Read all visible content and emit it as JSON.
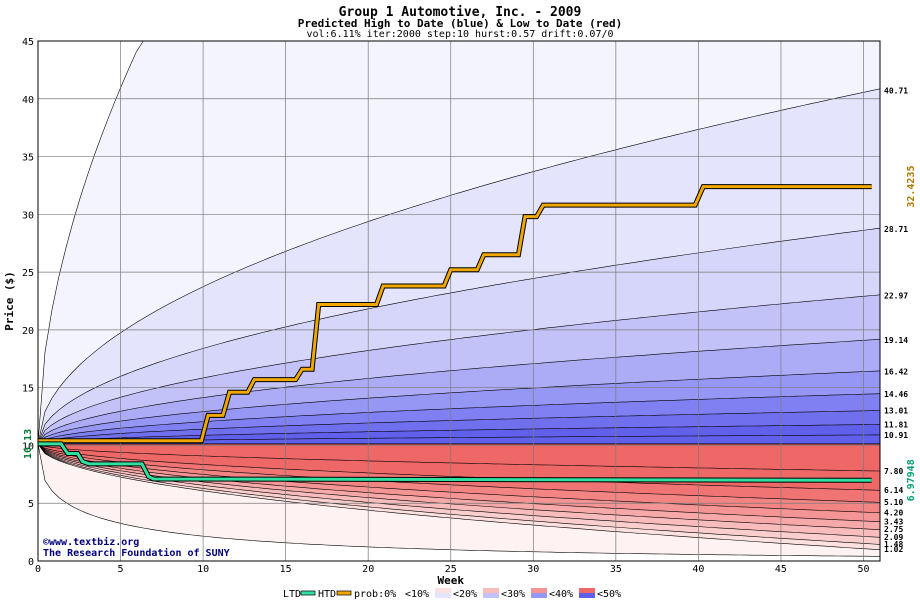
{
  "chart_data": {
    "type": "area",
    "title": "Group 1 Automotive, Inc. - 2009",
    "subtitle": "Predicted High to Date (blue) &  Low to Date (red)",
    "params": "vol:6.11% iter:2000 step:10 hurst:0.57 drift:0.07/0",
    "xlabel": "Week",
    "ylabel": "Price ($)",
    "xlim": [
      0,
      51
    ],
    "ylim": [
      0,
      45
    ],
    "x_ticks": [
      0,
      5,
      10,
      15,
      20,
      25,
      30,
      35,
      40,
      45,
      50
    ],
    "y_ticks": [
      0,
      5,
      10,
      15,
      20,
      25,
      30,
      35,
      40,
      45
    ],
    "grid": true,
    "start_price": 10.13,
    "start_label": "10.13",
    "high_labels": [
      "40.71",
      "28.71",
      "22.97",
      "19.14",
      "16.42",
      "14.46",
      "13.01",
      "11.81",
      "10.91"
    ],
    "high_end_values": [
      40.71,
      28.71,
      22.97,
      19.14,
      16.42,
      14.46,
      13.01,
      11.81,
      10.91
    ],
    "low_labels": [
      "7.80",
      "6.14",
      "5.10",
      "4.20",
      "3.43",
      "2.75",
      "2.09",
      "1.48",
      "1.02"
    ],
    "low_end_values": [
      7.8,
      6.14,
      5.1,
      4.2,
      3.43,
      2.75,
      2.09,
      1.48,
      1.02
    ],
    "htd_label": "32.4235",
    "ltd_label": "6.97948",
    "htd_series": {
      "name": "HTD",
      "x": [
        0,
        9.9,
        10.3,
        11.2,
        11.6,
        12.7,
        13.1,
        15.6,
        16.0,
        16.6,
        17.0,
        20.5,
        20.9,
        24.6,
        25.0,
        26.6,
        27.0,
        29.1,
        29.5,
        30.2,
        30.6,
        39.8,
        40.3,
        50.5
      ],
      "y": [
        10.4,
        10.4,
        12.6,
        12.6,
        14.6,
        14.6,
        15.7,
        15.7,
        16.6,
        16.6,
        22.2,
        22.2,
        23.8,
        23.8,
        25.2,
        25.2,
        26.5,
        26.5,
        29.8,
        29.8,
        30.8,
        30.8,
        32.4,
        32.4
      ]
    },
    "ltd_series": {
      "name": "LTD",
      "x": [
        0,
        1.4,
        1.8,
        2.4,
        2.7,
        3.1,
        6.3,
        6.7,
        7.0,
        50.5
      ],
      "y": [
        10.13,
        10.13,
        9.3,
        9.3,
        8.6,
        8.4,
        8.4,
        7.3,
        7.1,
        6.98
      ]
    },
    "legend": {
      "ltd": "LTD",
      "htd": "HTD",
      "prob": "prob:0%",
      "bands": [
        "<10%",
        "<20%",
        "<30%",
        "<40%",
        "<50%"
      ]
    },
    "colors": {
      "high_bands": [
        "#f4f4ff",
        "#e4e4fc",
        "#d6d6fa",
        "#c2c2f8",
        "#acacf6",
        "#9696f4",
        "#8080f2",
        "#7070ee",
        "#6060ea"
      ],
      "low_bands": [
        "#fff2f2",
        "#fde0e0",
        "#fbcece",
        "#f9bcbc",
        "#f7a8a8",
        "#f59494",
        "#f38484",
        "#f17474",
        "#ef6868"
      ],
      "htd": "#f0a800",
      "ltd": "#30e0a0",
      "ltd_label": "#00a070",
      "htd_label": "#b07800"
    },
    "credit": [
      "©www.textbiz.org",
      "The Research Foundation of SUNY"
    ]
  }
}
